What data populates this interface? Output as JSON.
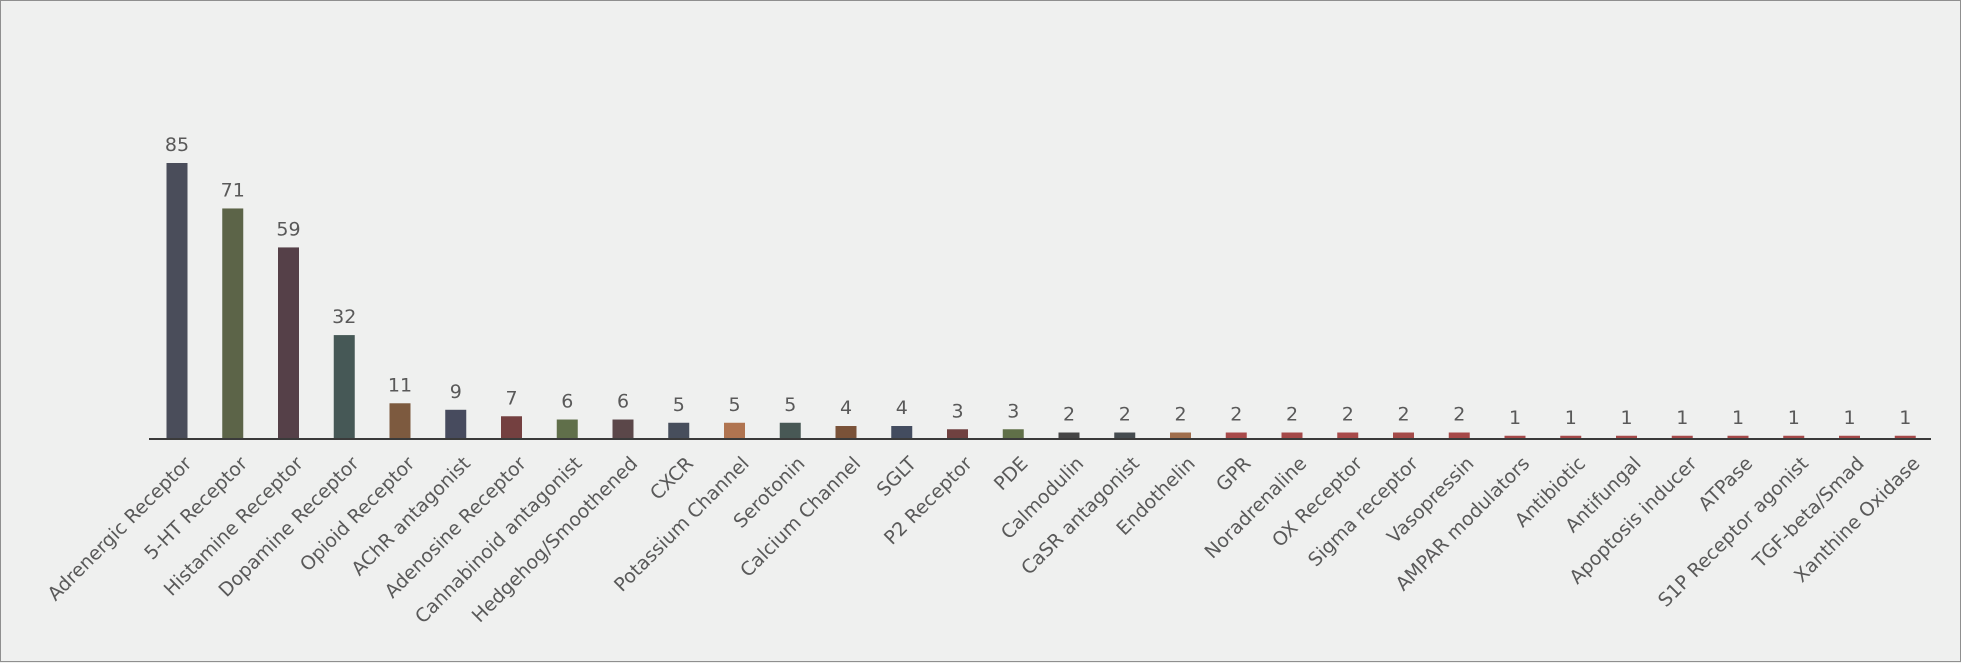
{
  "chart_data": {
    "type": "bar",
    "title": "",
    "xlabel": "",
    "ylabel": "",
    "ylim": [
      0,
      100
    ],
    "grid": false,
    "legend": "none",
    "data_labels": true,
    "categories": [
      "Adrenergic Receptor",
      "5-HT Receptor",
      "Histamine Receptor",
      "Dopamine Receptor",
      "Opioid Receptor",
      "AChR antagonist",
      "Adenosine Receptor",
      "Cannabinoid antagonist",
      "Hedgehog/Smoothened",
      "CXCR",
      "Potassium Channel",
      "Serotonin",
      "Calcium Channel",
      "SGLT",
      "P2 Receptor",
      "PDE",
      "Calmodulin",
      "CaSR antagonist",
      "Endothelin",
      "GPR",
      "Noradrenaline",
      "OX Receptor",
      "Sigma receptor",
      "Vasopressin",
      "AMPAR modulators",
      "Antibiotic",
      "Antifungal",
      "Apoptosis inducer",
      "ATPase",
      "S1P Receptor agonist",
      "TGF-beta/Smad",
      "Xanthine Oxidase"
    ],
    "values": [
      85,
      71,
      59,
      32,
      11,
      9,
      7,
      6,
      6,
      5,
      5,
      5,
      4,
      4,
      3,
      3,
      2,
      2,
      2,
      2,
      2,
      2,
      2,
      2,
      1,
      1,
      1,
      1,
      1,
      1,
      1,
      1
    ],
    "colors": [
      "#4a4d5a",
      "#5c6448",
      "#554048",
      "#465856",
      "#7d5a3f",
      "#474b5e",
      "#744040",
      "#606f4a",
      "#5b4749",
      "#474e5c",
      "#b07450",
      "#485855",
      "#7a5238",
      "#434c5f",
      "#704140",
      "#607048",
      "#454545",
      "#454b4f",
      "#a06e4c",
      "#a84a4a",
      "#a44848",
      "#a84a4a",
      "#a44a48",
      "#a64848",
      "#a44848",
      "#a44848",
      "#a44848",
      "#a44848",
      "#a44848",
      "#a44848",
      "#a44848",
      "#a44848"
    ],
    "axis_color": "#3a3a3a",
    "label_color": "#595959"
  }
}
